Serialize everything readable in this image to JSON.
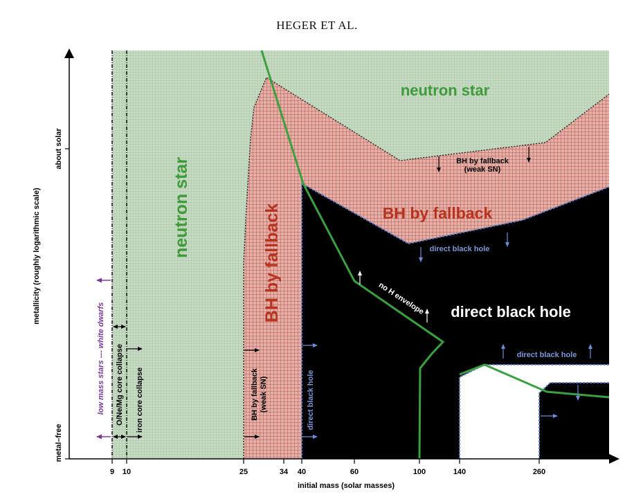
{
  "header": {
    "running_head": "HEGER ET AL."
  },
  "axes": {
    "xlabel": "initial mass (solar masses)",
    "ylabel": "metallicity (roughly logarithmic scale)",
    "x_ticks": [
      "9",
      "10",
      "25",
      "34",
      "40",
      "60",
      "100",
      "140",
      "260"
    ],
    "y_ticks": [
      "about solar",
      "metal–free"
    ]
  },
  "regions": {
    "neutron_star_left": "neutron star",
    "neutron_star_top": "neutron star",
    "bh_fallback_vertical": "BH by fallback",
    "bh_fallback_horizontal": "BH by fallback",
    "direct_black_hole_main": "direct black hole"
  },
  "annotations": {
    "low_mass_stars": "low mass stars --- white dwarfs",
    "onemg_collapse": "O/Ne/Mg core collapse",
    "iron_collapse": "iron core collapse",
    "bh_fallback_weak_vertical_1": "BH by fallback",
    "bh_fallback_weak_vertical_2": "(weak SN)",
    "direct_bh_vertical": "direct black hole",
    "bh_fallback_weak_top_1": "BH by fallback",
    "bh_fallback_weak_top_2": "(weak SN)",
    "direct_bh_boundary": "direct black hole",
    "no_h_envelope": "no H envelope",
    "direct_bh_lower_right": "direct black hole"
  },
  "colors": {
    "neutron_star_fill": "#c3d6bf",
    "bh_fallback_fill": "#d8998f",
    "black_hole_fill": "#000000",
    "green_line": "#3aa040",
    "neutron_label": "#3f9a3a",
    "fallback_label": "#b8331f",
    "purple_arrow": "#7a3a9a",
    "blue_dashed": "#4b6cb8"
  }
}
